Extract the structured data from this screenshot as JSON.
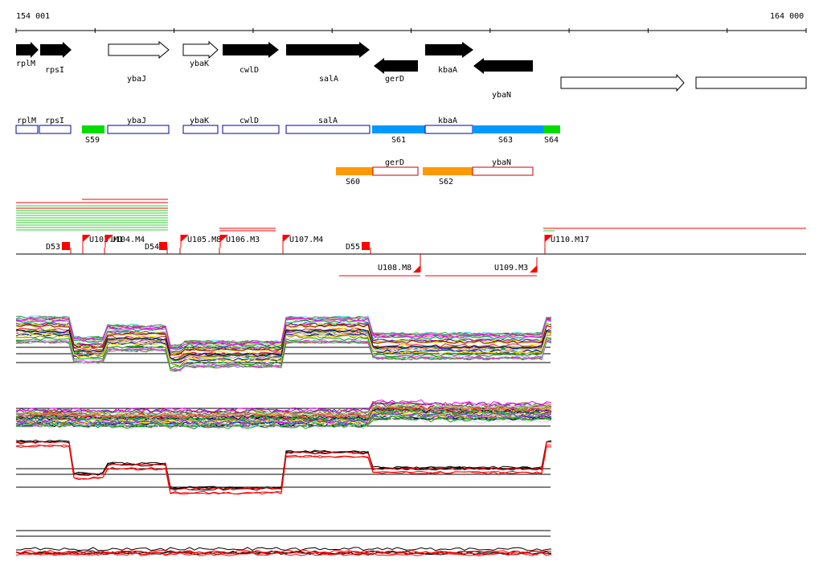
{
  "axis": {
    "start_label": "154 001",
    "end_label": "164 000"
  },
  "genes": [
    {
      "name": "rplM",
      "type": "solid",
      "strand": "+"
    },
    {
      "name": "rpsI",
      "type": "solid",
      "strand": "+"
    },
    {
      "name": "ybaJ",
      "type": "outline",
      "strand": "+"
    },
    {
      "name": "ybaK",
      "type": "outline",
      "strand": "+"
    },
    {
      "name": "cwlD",
      "type": "solid",
      "strand": "+"
    },
    {
      "name": "salA",
      "type": "solid",
      "strand": "+"
    },
    {
      "name": "gerD",
      "type": "solid",
      "strand": "-"
    },
    {
      "name": "kbaA",
      "type": "solid",
      "strand": "+"
    },
    {
      "name": "ybaN",
      "type": "solid",
      "strand": "-"
    },
    {
      "name": "",
      "type": "outline",
      "strand": "+"
    },
    {
      "name": "",
      "type": "outline",
      "strand": "+"
    }
  ],
  "segments_top": [
    {
      "label": "rplM",
      "color": "#ffffff"
    },
    {
      "label": "rpsI",
      "color": "#ffffff"
    },
    {
      "label": "S59",
      "color": "#00dd00"
    },
    {
      "label": "ybaJ",
      "color": "#ffffff"
    },
    {
      "label": "ybaK",
      "color": "#ffffff"
    },
    {
      "label": "cwlD",
      "color": "#ffffff"
    },
    {
      "label": "salA",
      "color": "#ffffff"
    },
    {
      "label": "S61",
      "color": "#0099ff"
    },
    {
      "label": "kbaA",
      "color": "#ffffff"
    },
    {
      "label": "S63",
      "color": "#0099ff"
    },
    {
      "label": "S64",
      "color": "#00dd00"
    }
  ],
  "segments_bottom": [
    {
      "label": "S60",
      "color": "#ff9900"
    },
    {
      "label": "gerD",
      "color": "#ffffff"
    },
    {
      "label": "S62",
      "color": "#ff9900"
    },
    {
      "label": "ybaN",
      "color": "#ffffff"
    }
  ],
  "sites_top": [
    {
      "label": "D53",
      "kind": "D"
    },
    {
      "label": "U103.M1",
      "kind": "U"
    },
    {
      "label": "U104.M4",
      "kind": "U"
    },
    {
      "label": "D54",
      "kind": "D"
    },
    {
      "label": "U105.M8",
      "kind": "U"
    },
    {
      "label": "U106.M3",
      "kind": "U"
    },
    {
      "label": "U107.M4",
      "kind": "U"
    },
    {
      "label": "D55",
      "kind": "D"
    },
    {
      "label": "U110.M17",
      "kind": "U"
    }
  ],
  "sites_bottom": [
    {
      "label": "U108.M8",
      "kind": "U"
    },
    {
      "label": "U109.M3",
      "kind": "U"
    }
  ],
  "colors": {
    "promoter": "#ff0000",
    "outline_blue": "#0000aa",
    "outline_red": "#cc0000",
    "green_lines": "#33cc33"
  }
}
